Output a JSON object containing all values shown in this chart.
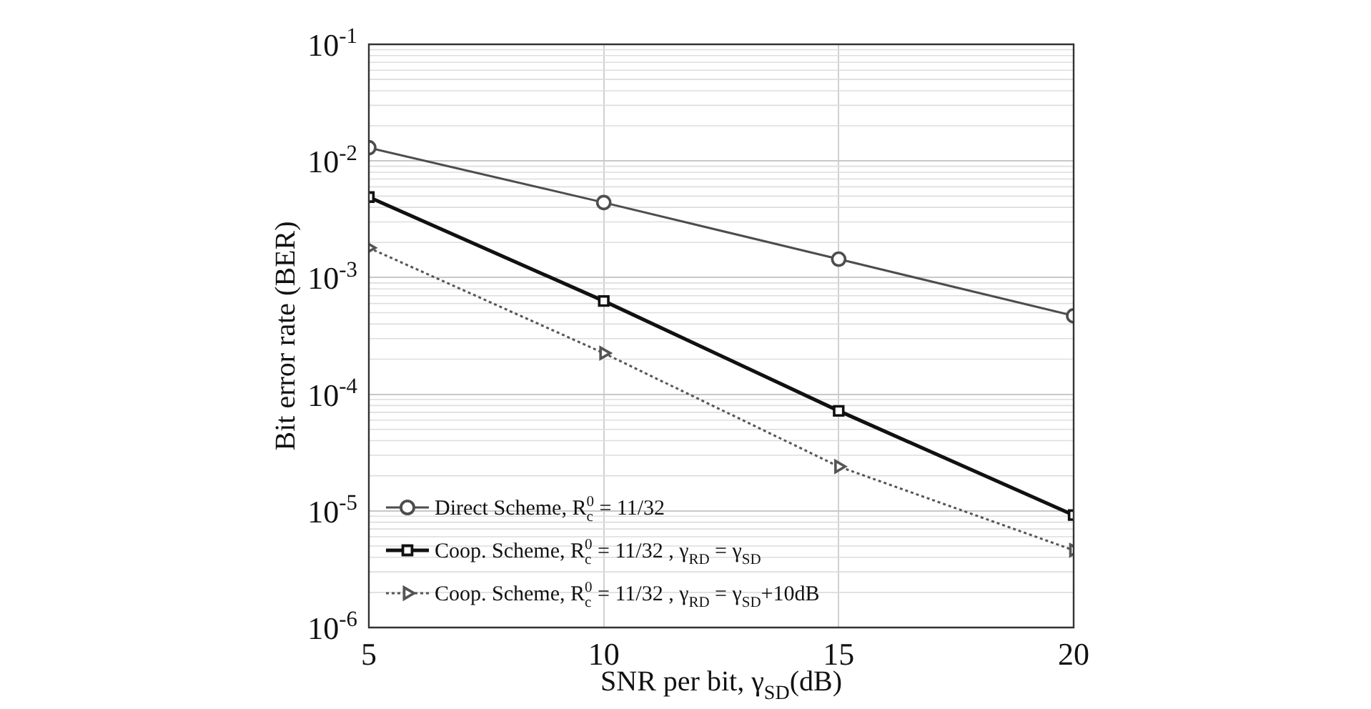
{
  "chart_data": {
    "type": "line",
    "xlabel": "SNR per bit, γ$_{SD}$(dB)",
    "ylabel": "Bit error rate (BER)",
    "x": [
      5,
      10,
      15,
      20
    ],
    "xlim": [
      5,
      20
    ],
    "xticks": [
      5,
      10,
      15,
      20
    ],
    "ylim": [
      1e-06,
      0.1
    ],
    "yticks": [
      {
        "value": 1e-06,
        "label": "10$^{-6}$"
      },
      {
        "value": 1e-05,
        "label": "10$^{-5}$"
      },
      {
        "value": 0.0001,
        "label": "10$^{-4}$"
      },
      {
        "value": 0.001,
        "label": "10$^{-3}$"
      },
      {
        "value": 0.01,
        "label": "10$^{-2}$"
      },
      {
        "value": 0.1,
        "label": "10$^{-1}$"
      }
    ],
    "log": "y",
    "grid": true,
    "legend": "bottom left",
    "series": [
      {
        "name": "Direct Scheme, R$_{c}$$^{0}$ = 11/32",
        "color": "#4d4d4d",
        "marker": "circle",
        "line_style": "solid",
        "values": [
          0.013,
          0.0044,
          0.00144,
          0.00047
        ]
      },
      {
        "name": "Coop. Scheme, R$_{c}$$^{0}$ = 11/32 , γ$_{RD}$ = γ$_{SD}$",
        "color": "#111111",
        "marker": "square",
        "line_style": "solid",
        "values": [
          0.0049,
          0.00063,
          7.2e-05,
          9.2e-06
        ]
      },
      {
        "name": "Coop. Scheme, R$_{c}$$^{0}$ = 11/32 , γ$_{RD}$ = γ$_{SD}$+10dB",
        "color": "#555555",
        "marker": "triangle",
        "line_style": "dotted",
        "values": [
          0.0018,
          0.000225,
          2.4e-05,
          4.6e-06
        ]
      }
    ]
  }
}
